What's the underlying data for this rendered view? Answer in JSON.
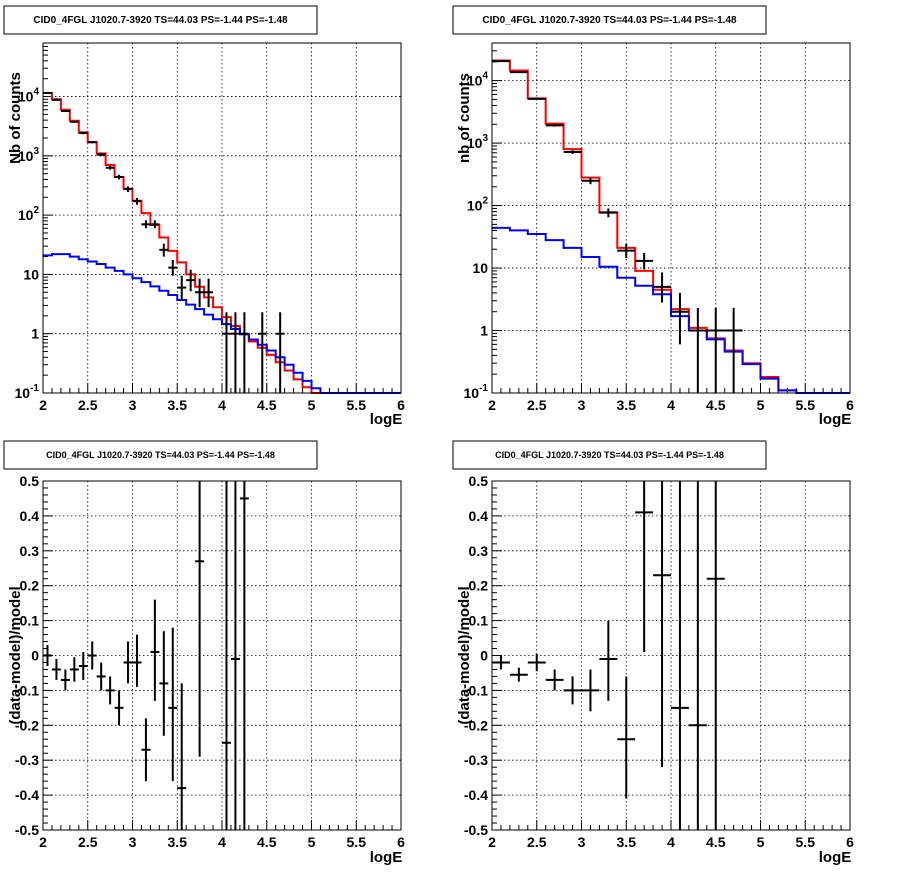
{
  "panel_title": "CID0_4FGL J1020.7-3920 TS=44.03 PS=-1.44 PS=-1.48",
  "colors": {
    "data": "#000000",
    "model_total": "#ff0000",
    "model_background": "#0000ff",
    "grid": "#000000",
    "frame": "#000000"
  },
  "chart_data": [
    {
      "type": "line",
      "title": "CID0_4FGL J1020.7-3920 TS=44.03 PS=-1.44 PS=-1.48",
      "xlabel": "logE",
      "ylabel": "Nb of counts",
      "xlim": [
        2,
        6
      ],
      "ylim": [
        0.1,
        80000
      ],
      "yscale": "log",
      "grid": true,
      "x_ticks": [
        "2",
        "2.5",
        "3",
        "3.5",
        "4",
        "4.5",
        "5",
        "5.5",
        "6"
      ],
      "y_ticks": [
        "10^-1",
        "1",
        "10",
        "10^2",
        "10^3",
        "10^4"
      ],
      "bin_edges": [
        2.0,
        2.1,
        2.2,
        2.3,
        2.4,
        2.5,
        2.6,
        2.7,
        2.8,
        2.9,
        3.0,
        3.1,
        3.2,
        3.3,
        3.4,
        3.5,
        3.6,
        3.7,
        3.8,
        3.9,
        4.0,
        4.1,
        4.2,
        4.3,
        4.4,
        4.5,
        4.6,
        4.7,
        4.8,
        4.9,
        5.0,
        5.1,
        5.2,
        5.3,
        5.4,
        5.5,
        5.6,
        5.7,
        5.8,
        5.9,
        6.0
      ],
      "series": [
        {
          "role": "model_total",
          "values": [
            11500,
            9000,
            6000,
            3900,
            2500,
            1700,
            1100,
            700,
            440,
            280,
            175,
            108,
            68,
            42,
            25,
            16,
            10,
            6.2,
            4.1,
            2.8,
            1.9,
            1.35,
            0.98,
            0.74,
            0.58,
            0.44,
            0.33,
            0.24,
            0.17,
            0.125,
            0.1,
            0.1,
            0.1,
            0.1,
            0.1,
            0.1,
            0.1,
            0.1,
            0.1,
            0.1
          ]
        },
        {
          "role": "model_background",
          "values": [
            21,
            22,
            22,
            20,
            18,
            16.5,
            15,
            13,
            11.5,
            10,
            8.6,
            7.4,
            6.3,
            5.3,
            4.5,
            3.7,
            3.1,
            2.6,
            2.1,
            1.75,
            1.45,
            1.2,
            0.98,
            0.8,
            0.65,
            0.52,
            0.4,
            0.3,
            0.22,
            0.16,
            0.12,
            0.1,
            0.1,
            0.1,
            0.1,
            0.1,
            0.1,
            0.1,
            0.1,
            0.1
          ]
        },
        {
          "role": "data",
          "points": [
            {
              "x": 2.05,
              "y": 11500,
              "lo": 11300,
              "hi": 11700
            },
            {
              "x": 2.15,
              "y": 8800,
              "lo": 8600,
              "hi": 9000
            },
            {
              "x": 2.25,
              "y": 5700,
              "lo": 5550,
              "hi": 5850
            },
            {
              "x": 2.35,
              "y": 3750,
              "lo": 3630,
              "hi": 3870
            },
            {
              "x": 2.45,
              "y": 2420,
              "lo": 2320,
              "hi": 2520
            },
            {
              "x": 2.55,
              "y": 1700,
              "lo": 1620,
              "hi": 1780
            },
            {
              "x": 2.65,
              "y": 1050,
              "lo": 985,
              "hi": 1115
            },
            {
              "x": 2.75,
              "y": 630,
              "lo": 585,
              "hi": 675
            },
            {
              "x": 2.85,
              "y": 440,
              "lo": 400,
              "hi": 480
            },
            {
              "x": 2.95,
              "y": 275,
              "lo": 245,
              "hi": 305
            },
            {
              "x": 3.05,
              "y": 172,
              "lo": 150,
              "hi": 195
            },
            {
              "x": 3.15,
              "y": 70,
              "lo": 60,
              "hi": 82
            },
            {
              "x": 3.25,
              "y": 70,
              "lo": 60,
              "hi": 82
            },
            {
              "x": 3.35,
              "y": 26,
              "lo": 20,
              "hi": 33
            },
            {
              "x": 3.45,
              "y": 13,
              "lo": 9.5,
              "hi": 17.5
            },
            {
              "x": 3.55,
              "y": 6,
              "lo": 3.7,
              "hi": 9.5
            },
            {
              "x": 3.65,
              "y": 8,
              "lo": 5.2,
              "hi": 12
            },
            {
              "x": 3.75,
              "y": 5,
              "lo": 2.8,
              "hi": 8.5
            },
            {
              "x": 3.85,
              "y": 5,
              "lo": 2.8,
              "hi": 8.5
            },
            {
              "x": 4.05,
              "y": 1,
              "lo": 0.1,
              "hi": 2.3
            },
            {
              "x": 4.15,
              "y": 1,
              "lo": 0.1,
              "hi": 2.3
            },
            {
              "x": 4.25,
              "y": 1,
              "lo": 0.1,
              "hi": 2.3
            },
            {
              "x": 4.45,
              "y": 1,
              "lo": 0.1,
              "hi": 2.3
            },
            {
              "x": 4.65,
              "y": 1,
              "lo": 0.1,
              "hi": 2.3
            }
          ]
        }
      ]
    },
    {
      "type": "line",
      "title": "CID0_4FGL J1020.7-3920 TS=44.03 PS=-1.44 PS=-1.48",
      "xlabel": "logE",
      "ylabel": "nb of counts",
      "xlim": [
        2,
        6
      ],
      "ylim": [
        0.1,
        40000
      ],
      "yscale": "log",
      "grid": true,
      "x_ticks": [
        "2",
        "2.5",
        "3",
        "3.5",
        "4",
        "4.5",
        "5",
        "5.5",
        "6"
      ],
      "y_ticks": [
        "10^-1",
        "1",
        "10",
        "10^2",
        "10^3",
        "10^4"
      ],
      "bin_edges": [
        2.0,
        2.2,
        2.4,
        2.6,
        2.8,
        3.0,
        3.2,
        3.4,
        3.6,
        3.8,
        4.0,
        4.2,
        4.4,
        4.6,
        4.8,
        5.0,
        5.2,
        5.4,
        5.6,
        5.8,
        6.0
      ],
      "series": [
        {
          "role": "model_total",
          "values": [
            21000,
            14500,
            5200,
            2050,
            800,
            280,
            78,
            21,
            9,
            4.5,
            2.2,
            1.1,
            0.75,
            0.48,
            0.3,
            0.18,
            0.11,
            0.1,
            0.1,
            0.1
          ]
        },
        {
          "role": "model_background",
          "values": [
            44,
            40,
            35,
            28,
            21,
            15,
            10.5,
            7,
            5.2,
            3.8,
            1.7,
            1.0,
            0.72,
            0.46,
            0.29,
            0.17,
            0.11,
            0.1,
            0.1,
            0.1
          ]
        },
        {
          "role": "data",
          "points": [
            {
              "x": 2.1,
              "y": 20500,
              "lo": 20200,
              "hi": 20800
            },
            {
              "x": 2.3,
              "y": 13700,
              "lo": 13450,
              "hi": 13950
            },
            {
              "x": 2.5,
              "y": 5100,
              "lo": 4960,
              "hi": 5240
            },
            {
              "x": 2.7,
              "y": 1920,
              "lo": 1830,
              "hi": 2010
            },
            {
              "x": 2.9,
              "y": 720,
              "lo": 670,
              "hi": 770
            },
            {
              "x": 3.1,
              "y": 250,
              "lo": 220,
              "hi": 280
            },
            {
              "x": 3.3,
              "y": 77,
              "lo": 65,
              "hi": 90
            },
            {
              "x": 3.5,
              "y": 19,
              "lo": 14.5,
              "hi": 24.5
            },
            {
              "x": 3.7,
              "y": 13,
              "lo": 9.5,
              "hi": 17.5
            },
            {
              "x": 3.9,
              "y": 5,
              "lo": 2.8,
              "hi": 8.5
            },
            {
              "x": 4.1,
              "y": 2,
              "lo": 0.6,
              "hi": 4
            },
            {
              "x": 4.3,
              "y": 1,
              "lo": 0.1,
              "hi": 2.3
            },
            {
              "x": 4.5,
              "y": 1,
              "lo": 0.1,
              "hi": 2.3
            },
            {
              "x": 4.7,
              "y": 1,
              "lo": 0.1,
              "hi": 2.3
            }
          ]
        }
      ]
    },
    {
      "type": "scatter",
      "title": "CID0_4FGL J1020.7-3920 TS=44.03 PS=-1.44 PS=-1.48",
      "xlabel": "logE",
      "ylabel": "(data-model)/model",
      "xlim": [
        2,
        6
      ],
      "ylim": [
        -0.5,
        0.5
      ],
      "grid": true,
      "x_ticks": [
        "2",
        "2.5",
        "3",
        "3.5",
        "4",
        "4.5",
        "5",
        "5.5",
        "6"
      ],
      "y_ticks": [
        "-0.5",
        "-0.4",
        "-0.3",
        "-0.2",
        "-0.1",
        "0",
        "0.1",
        "0.2",
        "0.3",
        "0.4",
        "0.5"
      ],
      "x_bin_width": 0.1,
      "series": [
        {
          "role": "data",
          "points": [
            {
              "x": 2.05,
              "y": 0.0,
              "lo": -0.03,
              "hi": 0.03
            },
            {
              "x": 2.15,
              "y": -0.04,
              "lo": -0.07,
              "hi": -0.01
            },
            {
              "x": 2.25,
              "y": -0.07,
              "lo": -0.1,
              "hi": -0.04
            },
            {
              "x": 2.35,
              "y": -0.04,
              "lo": -0.075,
              "hi": -0.005
            },
            {
              "x": 2.45,
              "y": -0.03,
              "lo": -0.07,
              "hi": 0.01
            },
            {
              "x": 2.55,
              "y": 0.0,
              "lo": -0.04,
              "hi": 0.04
            },
            {
              "x": 2.65,
              "y": -0.06,
              "lo": -0.1,
              "hi": -0.02
            },
            {
              "x": 2.75,
              "y": -0.1,
              "lo": -0.14,
              "hi": -0.06
            },
            {
              "x": 2.85,
              "y": -0.15,
              "lo": -0.2,
              "hi": -0.1
            },
            {
              "x": 2.95,
              "y": -0.02,
              "lo": -0.08,
              "hi": 0.04
            },
            {
              "x": 3.05,
              "y": -0.02,
              "lo": -0.09,
              "hi": 0.06
            },
            {
              "x": 3.15,
              "y": -0.27,
              "lo": -0.36,
              "hi": -0.18
            },
            {
              "x": 3.25,
              "y": 0.01,
              "lo": -0.13,
              "hi": 0.16
            },
            {
              "x": 3.35,
              "y": -0.08,
              "lo": -0.23,
              "hi": 0.07
            },
            {
              "x": 3.45,
              "y": -0.15,
              "lo": -0.36,
              "hi": 0.08
            },
            {
              "x": 3.55,
              "y": -0.38,
              "lo": -0.5,
              "hi": -0.08
            },
            {
              "x": 3.75,
              "y": 0.27,
              "lo": -0.29,
              "hi": 0.5
            },
            {
              "x": 4.05,
              "y": -0.25,
              "lo": -0.5,
              "hi": 0.5
            },
            {
              "x": 4.15,
              "y": -0.01,
              "lo": -0.5,
              "hi": 0.5
            },
            {
              "x": 4.25,
              "y": 0.45,
              "lo": -0.5,
              "hi": 0.5
            }
          ]
        }
      ]
    },
    {
      "type": "scatter",
      "title": "CID0_4FGL J1020.7-3920 TS=44.03 PS=-1.44 PS=-1.48",
      "xlabel": "logE",
      "ylabel": "(data-model)/model",
      "xlim": [
        2,
        6
      ],
      "ylim": [
        -0.5,
        0.5
      ],
      "grid": true,
      "x_ticks": [
        "2",
        "2.5",
        "3",
        "3.5",
        "4",
        "4.5",
        "5",
        "5.5",
        "6"
      ],
      "y_ticks": [
        "-0.5",
        "-0.4",
        "-0.3",
        "-0.2",
        "-0.1",
        "0",
        "0.1",
        "0.2",
        "0.3",
        "0.4",
        "0.5"
      ],
      "x_bin_width": 0.2,
      "series": [
        {
          "role": "data",
          "points": [
            {
              "x": 2.1,
              "y": -0.02,
              "lo": -0.04,
              "hi": 0.0
            },
            {
              "x": 2.3,
              "y": -0.055,
              "lo": -0.075,
              "hi": -0.035
            },
            {
              "x": 2.5,
              "y": -0.02,
              "lo": -0.045,
              "hi": 0.005
            },
            {
              "x": 2.7,
              "y": -0.07,
              "lo": -0.1,
              "hi": -0.04
            },
            {
              "x": 2.9,
              "y": -0.1,
              "lo": -0.14,
              "hi": -0.06
            },
            {
              "x": 3.1,
              "y": -0.1,
              "lo": -0.16,
              "hi": -0.04
            },
            {
              "x": 3.3,
              "y": -0.01,
              "lo": -0.13,
              "hi": 0.1
            },
            {
              "x": 3.5,
              "y": -0.24,
              "lo": -0.41,
              "hi": -0.06
            },
            {
              "x": 3.7,
              "y": 0.41,
              "lo": 0.01,
              "hi": 0.5
            },
            {
              "x": 3.9,
              "y": 0.23,
              "lo": -0.32,
              "hi": 0.5
            },
            {
              "x": 4.1,
              "y": -0.15,
              "lo": -0.5,
              "hi": 0.5
            },
            {
              "x": 4.3,
              "y": -0.2,
              "lo": -0.5,
              "hi": 0.5
            },
            {
              "x": 4.5,
              "y": 0.22,
              "lo": -0.5,
              "hi": 0.5
            }
          ]
        }
      ]
    }
  ]
}
